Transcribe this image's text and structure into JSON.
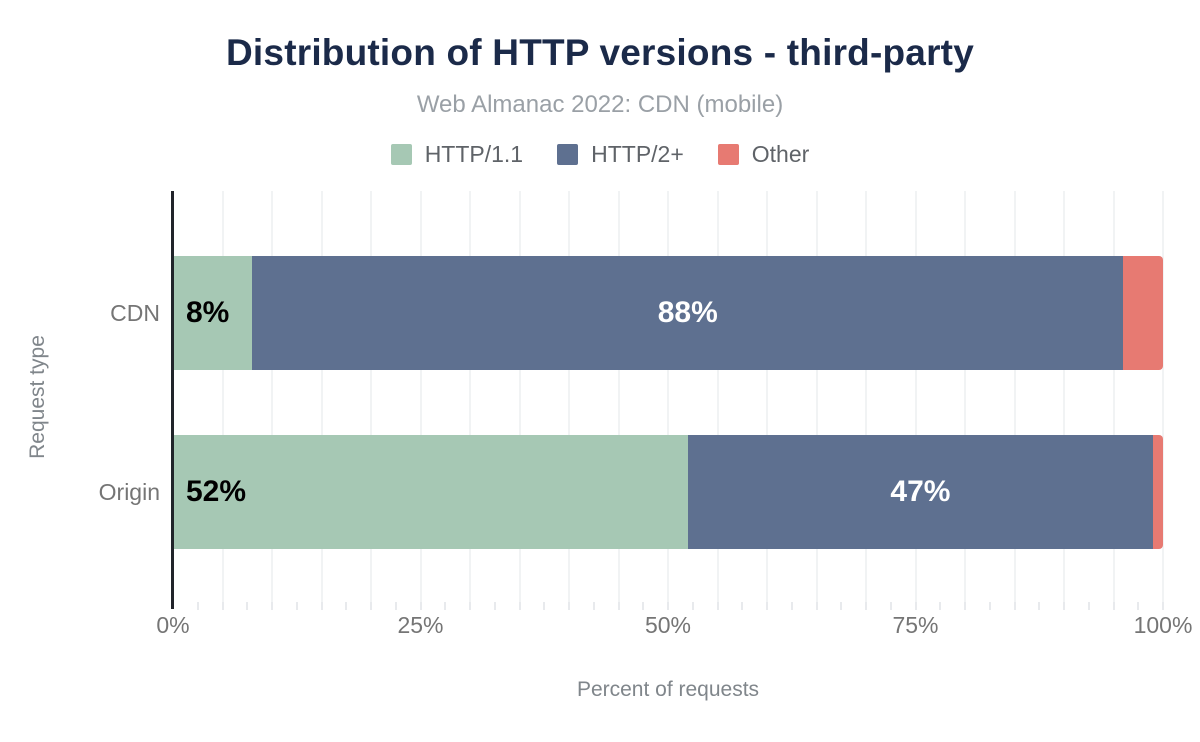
{
  "page": {
    "background": "#ffffff"
  },
  "chart_data": {
    "type": "bar",
    "orientation": "horizontal-stacked",
    "title": "Distribution of HTTP versions - third-party",
    "subtitle": "Web Almanac 2022: CDN (mobile)",
    "xlabel": "Percent of requests",
    "ylabel": "Request type",
    "categories": [
      "CDN",
      "Origin"
    ],
    "series": [
      {
        "name": "HTTP/1.1",
        "color": "#a6c8b4",
        "values": [
          8,
          52
        ],
        "show_labels": true,
        "label_color": "#000000",
        "label_align": "start"
      },
      {
        "name": "HTTP/2+",
        "color": "#5e7090",
        "values": [
          88,
          47
        ],
        "show_labels": true,
        "label_color": "#ffffff",
        "label_align": "center"
      },
      {
        "name": "Other",
        "color": "#e77a72",
        "values": [
          4,
          1
        ],
        "show_labels": false,
        "label_color": "#000000",
        "label_align": "center"
      }
    ],
    "value_label_suffix": "%",
    "x_ticks": [
      {
        "value": 0,
        "label": "0%"
      },
      {
        "value": 25,
        "label": "25%"
      },
      {
        "value": 50,
        "label": "50%"
      },
      {
        "value": 75,
        "label": "75%"
      },
      {
        "value": 100,
        "label": "100%"
      }
    ],
    "xlim": [
      0,
      100
    ],
    "grid": {
      "on": true,
      "gridline_interval": 5,
      "minor_tick_interval": 2.5
    },
    "legend_position": "top",
    "colors": {
      "title": "#1b2a49",
      "subtitle": "#9aa0a6",
      "legend_text": "#5f6368",
      "axis_text": "#757575",
      "axis_text_secondary": "#80868b",
      "gridline": "#f1f3f4",
      "minor_tick": "#e8eaed",
      "axis_line": "#21242a",
      "value_label_on_light": "#000000",
      "value_label_on_dark": "#ffffff"
    }
  }
}
